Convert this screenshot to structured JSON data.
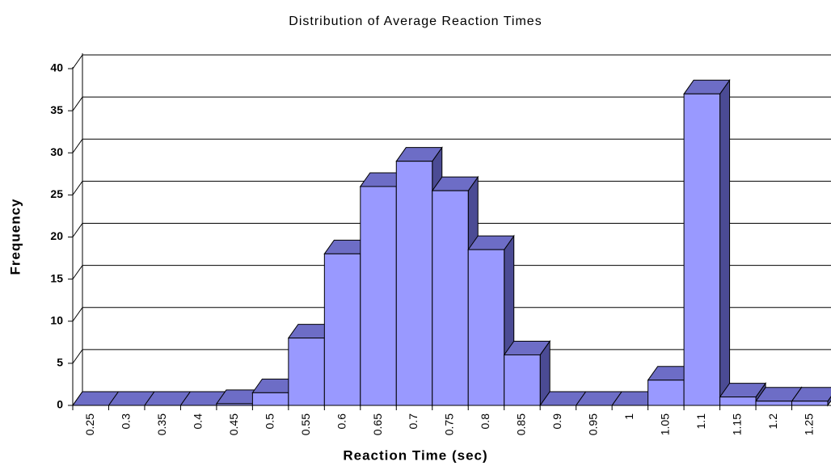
{
  "chart_data": {
    "type": "bar3d",
    "title": "Distribution of Average Reaction Times",
    "x_label": "Reaction Time (sec)",
    "y_label": "Frequency",
    "categories": [
      "0.25",
      "0.3",
      "0.35",
      "0.4",
      "0.45",
      "0.5",
      "0.55",
      "0.6",
      "0.65",
      "0.7",
      "0.75",
      "0.8",
      "0.85",
      "0.9",
      "0.95",
      "1",
      "1.05",
      "1.1",
      "1.15",
      "1.2",
      "1.25"
    ],
    "values": [
      0,
      0,
      0,
      0,
      0.2,
      1.5,
      8,
      18,
      26,
      29,
      25.5,
      18.5,
      6,
      0,
      0,
      0,
      3,
      37,
      1,
      0.5,
      0.5
    ],
    "color": "#9999ff",
    "top_color": "#6d6dc6",
    "side_color": "#4b4b94",
    "ylim": [
      0,
      40
    ],
    "yticks": [
      0,
      5,
      10,
      15,
      20,
      25,
      30,
      35,
      40
    ],
    "grid": true
  }
}
